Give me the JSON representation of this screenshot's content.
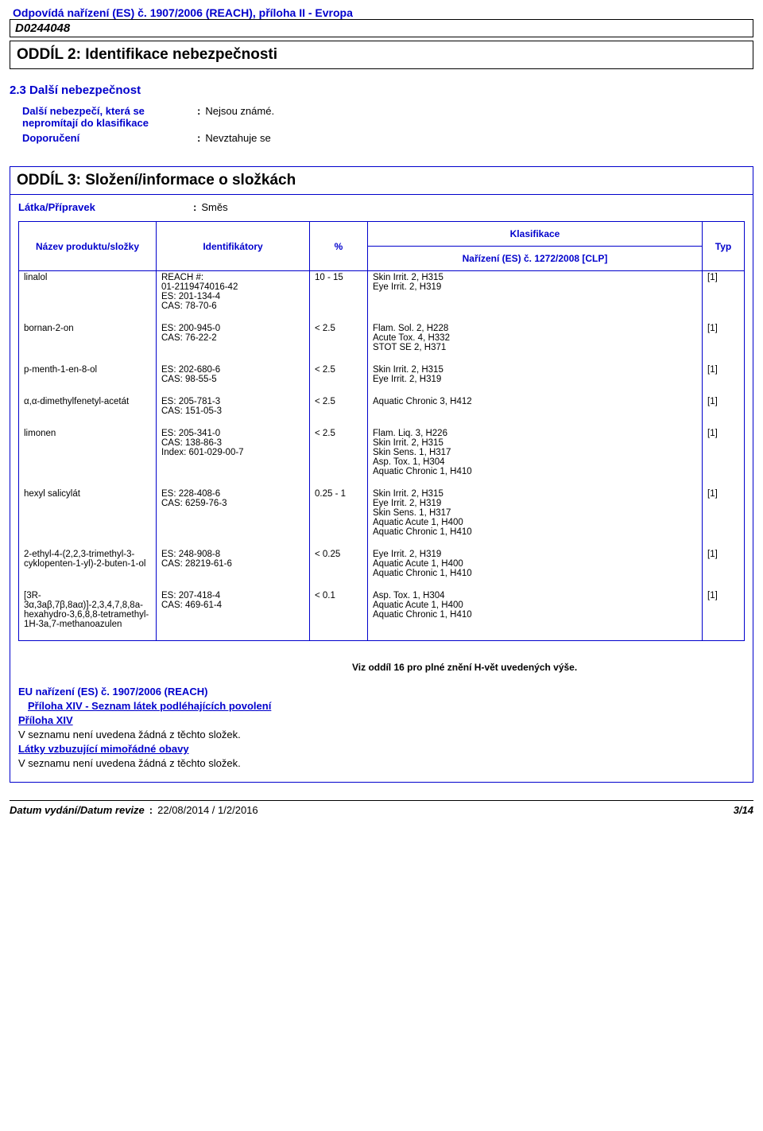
{
  "header": {
    "regulation_line": "Odpovídá nařízení (ES) č. 1907/2006 (REACH), příloha II - Evropa",
    "doc_code": "D0244048"
  },
  "section2": {
    "title": "ODDÍL 2: Identifikace nebezpečnosti",
    "sub_heading": "2.3 Další nebezpečnost",
    "kv1_label": "Další nebezpečí, která se nepromítají do klasifikace",
    "kv1_value": "Nejsou známé.",
    "kv2_label": "Doporučení",
    "kv2_value": "Nevztahuje se"
  },
  "section3": {
    "title": "ODDÍL 3: Složení/informace o složkách",
    "mixture_label": "Látka/Přípravek",
    "mixture_value": "Směs",
    "table": {
      "header_name": "Název produktu/složky",
      "header_ident": "Identifikátory",
      "header_pct": "%",
      "header_classification": "Klasifikace",
      "header_regulation": "Nařízení (ES) č. 1272/2008 [CLP]",
      "header_type": "Typ",
      "rows": [
        {
          "name": "linalol",
          "ident": "REACH #:\n01-2119474016-42\nES: 201-134-4\nCAS: 78-70-6",
          "pct": "10 - 15",
          "classification": "Skin Irrit. 2, H315\nEye Irrit. 2, H319",
          "type": "[1]"
        },
        {
          "name": "bornan-2-on",
          "ident": "ES: 200-945-0\nCAS: 76-22-2",
          "pct": "< 2.5",
          "classification": "Flam. Sol. 2, H228\nAcute Tox. 4, H332\nSTOT SE 2, H371",
          "type": "[1]"
        },
        {
          "name": "p-menth-1-en-8-ol",
          "ident": "ES: 202-680-6\nCAS: 98-55-5",
          "pct": "< 2.5",
          "classification": "Skin Irrit. 2, H315\nEye Irrit. 2, H319",
          "type": "[1]"
        },
        {
          "name": "α,α-dimethylfenetyl-acetát",
          "ident": "ES:      205-781-3\nCAS:    151-05-3",
          "pct": "< 2.5",
          "classification": "Aquatic Chronic 3, H412",
          "type": "[1]"
        },
        {
          "name": "limonen",
          "ident": "ES:      205-341-0\nCAS: 138-86-3\nIndex: 601-029-00-7",
          "pct": "< 2.5",
          "classification": "Flam. Liq. 3, H226\nSkin Irrit. 2, H315\nSkin Sens. 1, H317\nAsp. Tox. 1, H304\nAquatic Chronic 1, H410",
          "type": "[1]"
        },
        {
          "name": "hexyl salicylát",
          "ident": "ES: 228-408-6\nCAS: 6259-76-3",
          "pct": "0.25 - 1",
          "classification": "Skin Irrit. 2, H315\nEye Irrit. 2, H319\nSkin Sens. 1, H317\nAquatic Acute 1, H400\nAquatic Chronic 1, H410",
          "type": "[1]"
        },
        {
          "name": "2-ethyl-4-(2,2,3-trimethyl-3-cyklopenten-1-yl)-2-buten-1-ol",
          "ident": "ES: 248-908-8\nCAS: 28219-61-6",
          "pct": "< 0.25",
          "classification": "Eye Irrit. 2, H319\nAquatic Acute 1, H400\nAquatic Chronic 1, H410",
          "type": "[1]"
        },
        {
          "name": "[3R-3α,3aβ,7β,8aα)]-2,3,4,7,8,8a-hexahydro-3,6,8,8-tetramethyl-1H-3a,7-methanoazulen",
          "ident": "ES: 207-418-4\nCAS: 469-61-4",
          "pct": "< 0.1",
          "classification": "Asp. Tox. 1, H304\nAquatic Acute 1, H400\nAquatic Chronic 1, H410",
          "type": "[1]"
        }
      ]
    },
    "footer_note": "Viz oddíl 16 pro plné znění H-vět uvedených výše.",
    "reach_line": "EU nařízení (ES) č. 1907/2006 (REACH)",
    "annex14_list": "Příloha XIV - Seznam látek podléhajících povolení",
    "annex14": "Příloha XIV",
    "not_listed_1": "V seznamu není uvedena žádná z těchto složek.",
    "svhc": "Látky vzbuzující mimořádné obavy",
    "not_listed_2": "V seznamu není uvedena žádná z těchto složek."
  },
  "footer": {
    "label": "Datum vydání/Datum revize",
    "value": "22/08/2014 / 1/2/2016",
    "page": "3/14"
  }
}
